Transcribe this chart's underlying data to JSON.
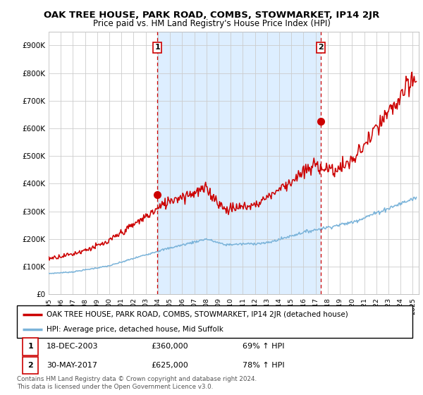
{
  "title": "OAK TREE HOUSE, PARK ROAD, COMBS, STOWMARKET, IP14 2JR",
  "subtitle": "Price paid vs. HM Land Registry's House Price Index (HPI)",
  "ylabel_ticks": [
    "£0",
    "£100K",
    "£200K",
    "£300K",
    "£400K",
    "£500K",
    "£600K",
    "£700K",
    "£800K",
    "£900K"
  ],
  "ytick_values": [
    0,
    100000,
    200000,
    300000,
    400000,
    500000,
    600000,
    700000,
    800000,
    900000
  ],
  "ylim": [
    0,
    950000
  ],
  "xlim_start": 1995.0,
  "xlim_end": 2025.5,
  "red_line_color": "#cc0000",
  "blue_line_color": "#7ab3d9",
  "shading_color": "#ddeeff",
  "marker_color": "#cc0000",
  "dashed_color": "#cc0000",
  "legend_line1": "OAK TREE HOUSE, PARK ROAD, COMBS, STOWMARKET, IP14 2JR (detached house)",
  "legend_line2": "HPI: Average price, detached house, Mid Suffolk",
  "annotation1_date": "18-DEC-2003",
  "annotation1_price": "£360,000",
  "annotation1_hpi": "69% ↑ HPI",
  "annotation2_date": "30-MAY-2017",
  "annotation2_price": "£625,000",
  "annotation2_hpi": "78% ↑ HPI",
  "footer": "Contains HM Land Registry data © Crown copyright and database right 2024.\nThis data is licensed under the Open Government Licence v3.0.",
  "sale1_x": 2003.96,
  "sale1_y": 360000,
  "sale2_x": 2017.41,
  "sale2_y": 625000,
  "background_color": "#ffffff",
  "plot_bg_color": "#ffffff",
  "grid_color": "#cccccc"
}
